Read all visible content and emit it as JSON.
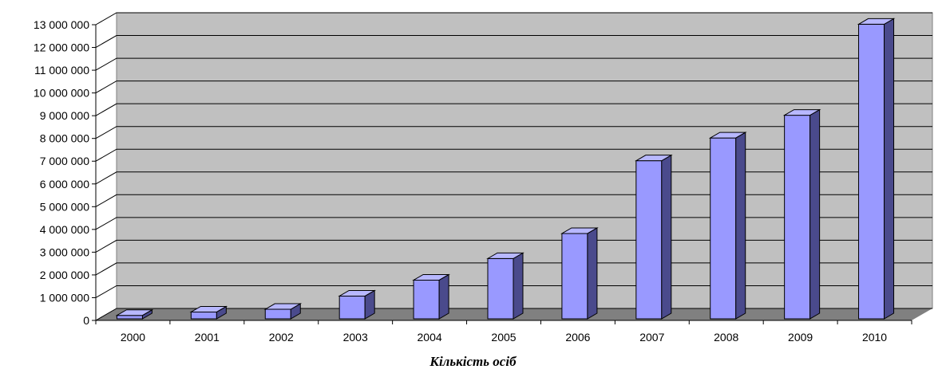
{
  "chart_data": {
    "type": "bar",
    "style": "3d",
    "categories": [
      "2000",
      "2001",
      "2002",
      "2003",
      "2004",
      "2005",
      "2006",
      "2007",
      "2008",
      "2009",
      "2010"
    ],
    "values": [
      150000,
      300000,
      420000,
      1000000,
      1700000,
      2650000,
      3750000,
      6950000,
      7950000,
      8950000,
      12950000
    ],
    "title": "",
    "xlabel": "Кількість осіб",
    "ylabel": "",
    "ylim": [
      0,
      13000000
    ],
    "ytick_step": 1000000,
    "yticks": [
      "0",
      "1 000 000",
      "2 000 000",
      "3 000 000",
      "4 000 000",
      "5 000 000",
      "6 000 000",
      "7 000 000",
      "8 000 000",
      "9 000 000",
      "10 000 000",
      "11 000 000",
      "12 000 000",
      "13 000 000"
    ],
    "grid": true,
    "legend": "none",
    "colors": {
      "bar_front": "#9999ff",
      "bar_top": "#b8b8ff",
      "bar_side": "#4a4a8c",
      "wall": "#c0c0c0",
      "floor": "#808080",
      "gridline": "#000000"
    }
  }
}
